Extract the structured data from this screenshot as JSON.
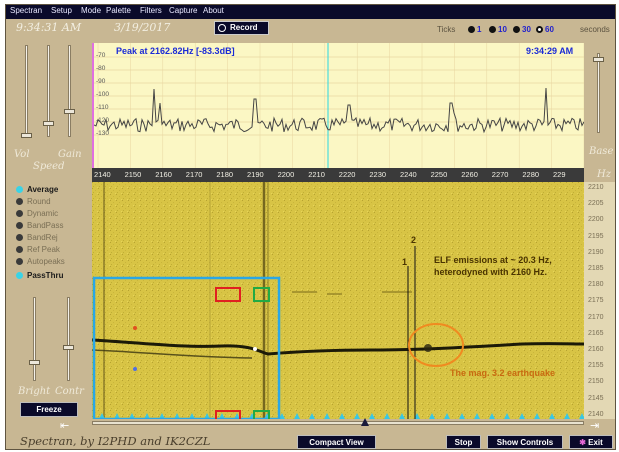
{
  "menu": [
    "Spectran",
    "Setup",
    "Mode",
    "Palette",
    "Filters",
    "Capture",
    "About"
  ],
  "header": {
    "time": "9:34:31 AM",
    "date": "3/19/2017",
    "record_label": "Record"
  },
  "ticks": {
    "label": "Ticks",
    "options": [
      "1",
      "10",
      "30",
      "60"
    ],
    "selected": "60",
    "unit": "seconds"
  },
  "sliders": {
    "vol": "Vol",
    "gain": "Gain",
    "speed": "Speed",
    "base": "Base",
    "hz": "Hz",
    "bright": "Bright",
    "contr": "Contr"
  },
  "options": [
    {
      "label": "Average",
      "active": true
    },
    {
      "label": "Round",
      "active": false
    },
    {
      "label": "Dynamic",
      "active": false
    },
    {
      "label": "BandPass",
      "active": false
    },
    {
      "label": "BandRej",
      "active": false
    },
    {
      "label": "Ref Peak",
      "active": false
    },
    {
      "label": "Autopeaks",
      "active": false
    },
    {
      "label": "PassThru",
      "active": true
    }
  ],
  "freeze_label": "Freeze",
  "spectrum": {
    "peak_label": "Peak at  2162.82Hz [-83.3dB]",
    "time": "9:34:29 AM",
    "db_ticks": [
      "-70",
      "-80",
      "-90",
      "-100",
      "-110",
      "-120",
      "-130"
    ]
  },
  "freq_ticks": [
    "2140",
    "2150",
    "2160",
    "2170",
    "2180",
    "2190",
    "2200",
    "2210",
    "2220",
    "2230",
    "2240",
    "2250",
    "2260",
    "2270",
    "2280",
    "229"
  ],
  "hz_ticks": [
    "2210",
    "2205",
    "2200",
    "2195",
    "2190",
    "2185",
    "2180",
    "2175",
    "2170",
    "2165",
    "2160",
    "2155",
    "2150",
    "2145",
    "2140"
  ],
  "annotations": {
    "marker_1": "1",
    "marker_2": "2",
    "elf_text": "ELF emissions at ~ 20.3 Hz, heterodyned with 2160 Hz.",
    "quake_text": "The mag. 3.2 earthquake"
  },
  "footer": {
    "title": "Spectran, by I2PHD and IK2CZL",
    "compact_view": "Compact View",
    "stop": "Stop",
    "show_controls": "Show Controls",
    "exit": "Exit"
  },
  "colors": {
    "spectrum_bg": "#fbf7c4",
    "waterfall_bg": "#d4c041",
    "accent_text": "#1b2bd6",
    "annotation_orange": "#f08a20",
    "blue_box": "#2aa7e6",
    "red_box": "#e02020",
    "green_box": "#22aa44"
  }
}
